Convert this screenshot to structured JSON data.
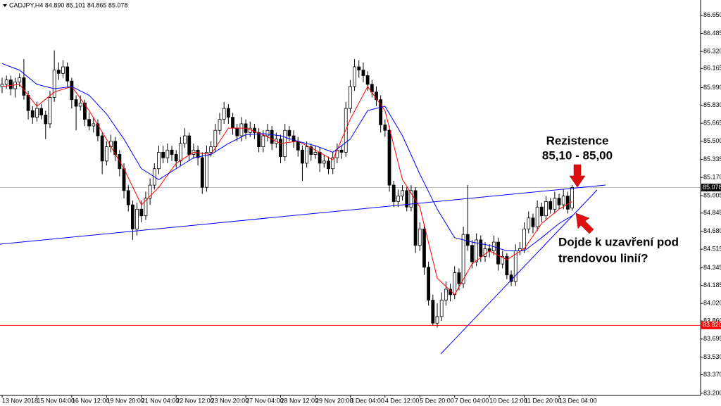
{
  "chart_data": {
    "type": "candlestick",
    "header": "CADJPY,H4  84.890 85.101 84.865 85.078",
    "ylim": [
      83.18,
      86.79
    ],
    "yticks": [
      {
        "value": 86.65,
        "label": "86.650"
      },
      {
        "value": 86.485,
        "label": "86.485"
      },
      {
        "value": 86.32,
        "label": "86.320"
      },
      {
        "value": 86.165,
        "label": "86.165"
      },
      {
        "value": 85.99,
        "label": "85.990"
      },
      {
        "value": 85.83,
        "label": "85.830"
      },
      {
        "value": 85.665,
        "label": "85.665"
      },
      {
        "value": 85.5,
        "label": "85.500"
      },
      {
        "value": 85.335,
        "label": "85.335"
      },
      {
        "value": 85.17,
        "label": "85.170"
      },
      {
        "value": 85.005,
        "label": "85.005"
      },
      {
        "value": 84.845,
        "label": "84.845"
      },
      {
        "value": 84.68,
        "label": "84.680"
      },
      {
        "value": 84.515,
        "label": "84.515"
      },
      {
        "value": 84.345,
        "label": "84.345"
      },
      {
        "value": 84.185,
        "label": "84.185"
      },
      {
        "value": 84.02,
        "label": "84.020"
      },
      {
        "value": 83.86,
        "label": "83.860"
      },
      {
        "value": 83.695,
        "label": "83.695"
      },
      {
        "value": 83.53,
        "label": "83.530"
      },
      {
        "value": 83.37,
        "label": "83.370"
      },
      {
        "value": 83.2,
        "label": "83.200"
      }
    ],
    "xticks": [
      {
        "value": 0,
        "label": "13 Nov 2018"
      },
      {
        "value": 8,
        "label": "15 Nov 04:00"
      },
      {
        "value": 16,
        "label": "16 Nov 12:00"
      },
      {
        "value": 24,
        "label": "19 Nov 20:00"
      },
      {
        "value": 32,
        "label": "21 Nov 04:00"
      },
      {
        "value": 40,
        "label": "22 Nov 12:00"
      },
      {
        "value": 48,
        "label": "23 Nov 20:00"
      },
      {
        "value": 56,
        "label": "27 Nov 04:00"
      },
      {
        "value": 64,
        "label": "28 Nov 12:00"
      },
      {
        "value": 72,
        "label": "29 Nov 20:00"
      },
      {
        "value": 80,
        "label": "3 Dec 04:00"
      },
      {
        "value": 88,
        "label": "4 Dec 12:00"
      },
      {
        "value": 96,
        "label": "5 Dec 20:00"
      },
      {
        "value": 104,
        "label": "7 Dec 04:00"
      },
      {
        "value": 112,
        "label": "10 Dec 12:00"
      },
      {
        "value": 120,
        "label": "11 Dec 20:00"
      },
      {
        "value": 128,
        "label": "13 Dec 04:00"
      }
    ],
    "ohlc": [
      [
        86.0,
        86.08,
        85.94,
        86.02
      ],
      [
        86.02,
        86.1,
        85.98,
        86.06
      ],
      [
        86.06,
        86.1,
        85.92,
        85.98
      ],
      [
        85.98,
        86.08,
        85.9,
        86.04
      ],
      [
        86.04,
        86.12,
        86.0,
        86.08
      ],
      [
        86.08,
        86.25,
        85.88,
        85.92
      ],
      [
        85.92,
        85.96,
        85.7,
        85.78
      ],
      [
        85.78,
        85.82,
        85.66,
        85.72
      ],
      [
        85.72,
        85.86,
        85.68,
        85.8
      ],
      [
        85.8,
        85.84,
        85.7,
        85.74
      ],
      [
        85.74,
        85.78,
        85.52,
        85.66
      ],
      [
        85.66,
        85.96,
        85.62,
        85.9
      ],
      [
        85.9,
        86.33,
        85.86,
        86.15
      ],
      [
        86.15,
        86.22,
        86.06,
        86.12
      ],
      [
        86.12,
        86.24,
        86.08,
        86.18
      ],
      [
        86.18,
        86.22,
        86.0,
        86.05
      ],
      [
        86.05,
        86.08,
        85.8,
        85.88
      ],
      [
        85.88,
        85.92,
        85.6,
        85.82
      ],
      [
        85.82,
        85.92,
        85.78,
        85.85
      ],
      [
        85.85,
        85.88,
        85.64,
        85.7
      ],
      [
        85.7,
        85.76,
        85.6,
        85.64
      ],
      [
        85.64,
        85.72,
        85.58,
        85.66
      ],
      [
        85.66,
        85.7,
        85.5,
        85.55
      ],
      [
        85.55,
        85.58,
        85.2,
        85.32
      ],
      [
        85.32,
        85.5,
        85.28,
        85.45
      ],
      [
        85.45,
        85.56,
        85.4,
        85.5
      ],
      [
        85.5,
        85.54,
        85.32,
        85.38
      ],
      [
        85.38,
        85.42,
        85.18,
        85.25
      ],
      [
        85.25,
        85.3,
        84.98,
        85.05
      ],
      [
        85.05,
        85.1,
        84.86,
        84.92
      ],
      [
        84.92,
        84.96,
        84.6,
        84.7
      ],
      [
        84.7,
        84.94,
        84.64,
        84.88
      ],
      [
        84.88,
        84.96,
        84.76,
        84.82
      ],
      [
        84.82,
        85.04,
        84.78,
        84.98
      ],
      [
        84.98,
        85.16,
        84.92,
        85.1
      ],
      [
        85.1,
        85.3,
        85.06,
        85.25
      ],
      [
        85.25,
        85.46,
        85.2,
        85.4
      ],
      [
        85.4,
        85.46,
        85.3,
        85.35
      ],
      [
        85.35,
        85.48,
        85.3,
        85.42
      ],
      [
        85.42,
        85.46,
        85.32,
        85.38
      ],
      [
        85.38,
        85.42,
        85.26,
        85.32
      ],
      [
        85.32,
        85.54,
        85.28,
        85.48
      ],
      [
        85.48,
        85.62,
        85.44,
        85.55
      ],
      [
        85.55,
        85.58,
        85.32,
        85.38
      ],
      [
        85.38,
        85.48,
        85.34,
        85.42
      ],
      [
        85.42,
        85.46,
        85.28,
        85.35
      ],
      [
        85.35,
        85.4,
        85.02,
        85.08
      ],
      [
        85.08,
        85.46,
        85.04,
        85.4
      ],
      [
        85.4,
        85.5,
        85.36,
        85.45
      ],
      [
        85.45,
        85.66,
        85.4,
        85.6
      ],
      [
        85.6,
        85.76,
        85.56,
        85.7
      ],
      [
        85.7,
        85.86,
        85.66,
        85.8
      ],
      [
        85.8,
        85.84,
        85.66,
        85.72
      ],
      [
        85.72,
        85.76,
        85.56,
        85.62
      ],
      [
        85.62,
        85.66,
        85.5,
        85.55
      ],
      [
        85.55,
        85.72,
        85.5,
        85.66
      ],
      [
        85.66,
        85.7,
        85.52,
        85.58
      ],
      [
        85.58,
        85.68,
        85.54,
        85.62
      ],
      [
        85.62,
        85.66,
        85.52,
        85.58
      ],
      [
        85.58,
        85.62,
        85.4,
        85.45
      ],
      [
        85.45,
        85.6,
        85.4,
        85.55
      ],
      [
        85.55,
        85.66,
        85.5,
        85.6
      ],
      [
        85.6,
        85.64,
        85.42,
        85.48
      ],
      [
        85.48,
        85.58,
        85.44,
        85.52
      ],
      [
        85.52,
        85.56,
        85.3,
        85.36
      ],
      [
        85.36,
        85.66,
        85.32,
        85.6
      ],
      [
        85.6,
        85.64,
        85.5,
        85.55
      ],
      [
        85.55,
        85.6,
        85.44,
        85.5
      ],
      [
        85.5,
        85.54,
        85.36,
        85.42
      ],
      [
        85.42,
        85.46,
        85.14,
        85.3
      ],
      [
        85.3,
        85.5,
        85.26,
        85.45
      ],
      [
        85.45,
        85.48,
        85.32,
        85.38
      ],
      [
        85.38,
        85.46,
        85.34,
        85.4
      ],
      [
        85.4,
        85.44,
        85.22,
        85.3
      ],
      [
        85.3,
        85.38,
        85.26,
        85.32
      ],
      [
        85.32,
        85.36,
        85.2,
        85.25
      ],
      [
        85.25,
        85.4,
        85.2,
        85.35
      ],
      [
        85.35,
        85.48,
        85.3,
        85.42
      ],
      [
        85.42,
        85.46,
        85.34,
        85.4
      ],
      [
        85.4,
        85.86,
        85.36,
        85.8
      ],
      [
        85.8,
        86.06,
        85.76,
        86.0
      ],
      [
        86.0,
        86.25,
        85.96,
        86.18
      ],
      [
        86.18,
        86.24,
        86.08,
        86.15
      ],
      [
        86.15,
        86.22,
        86.04,
        86.1
      ],
      [
        86.1,
        86.14,
        85.96,
        86.02
      ],
      [
        86.02,
        86.06,
        85.9,
        85.95
      ],
      [
        85.95,
        86.0,
        85.82,
        85.88
      ],
      [
        85.88,
        85.92,
        85.58,
        85.65
      ],
      [
        85.65,
        85.7,
        85.54,
        85.6
      ],
      [
        85.6,
        85.64,
        85.04,
        85.1
      ],
      [
        85.1,
        85.14,
        84.9,
        84.95
      ],
      [
        84.95,
        85.06,
        84.9,
        85.0
      ],
      [
        85.0,
        85.1,
        84.96,
        85.05
      ],
      [
        85.05,
        85.08,
        84.86,
        84.9
      ],
      [
        84.9,
        85.1,
        84.86,
        85.05
      ],
      [
        85.05,
        85.08,
        84.48,
        84.55
      ],
      [
        84.55,
        84.76,
        84.5,
        84.7
      ],
      [
        84.7,
        84.74,
        84.28,
        84.35
      ],
      [
        84.35,
        84.4,
        84.0,
        84.05
      ],
      [
        84.05,
        84.1,
        83.82,
        83.84
      ],
      [
        83.84,
        84.02,
        83.8,
        83.9
      ],
      [
        83.9,
        84.12,
        83.86,
        84.05
      ],
      [
        84.05,
        84.22,
        84.0,
        84.15
      ],
      [
        84.15,
        84.2,
        84.04,
        84.1
      ],
      [
        84.1,
        84.36,
        84.06,
        84.3
      ],
      [
        84.3,
        84.34,
        84.14,
        84.2
      ],
      [
        84.2,
        84.72,
        84.16,
        84.65
      ],
      [
        84.65,
        85.1,
        84.5,
        84.55
      ],
      [
        84.55,
        84.6,
        84.34,
        84.4
      ],
      [
        84.4,
        84.66,
        84.36,
        84.6
      ],
      [
        84.6,
        84.64,
        84.4,
        84.45
      ],
      [
        84.45,
        84.58,
        84.4,
        84.52
      ],
      [
        84.52,
        84.56,
        84.44,
        84.5
      ],
      [
        84.5,
        84.64,
        84.46,
        84.58
      ],
      [
        84.58,
        84.62,
        84.32,
        84.38
      ],
      [
        84.38,
        84.5,
        84.34,
        84.45
      ],
      [
        84.45,
        84.48,
        84.24,
        84.28
      ],
      [
        84.28,
        84.32,
        84.18,
        84.22
      ],
      [
        84.22,
        84.56,
        84.18,
        84.5
      ],
      [
        84.5,
        84.58,
        84.46,
        84.52
      ],
      [
        84.52,
        84.76,
        84.48,
        84.7
      ],
      [
        84.7,
        84.86,
        84.66,
        84.8
      ],
      [
        84.8,
        84.84,
        84.66,
        84.72
      ],
      [
        84.72,
        84.96,
        84.68,
        84.9
      ],
      [
        84.9,
        84.94,
        84.76,
        84.82
      ],
      [
        84.82,
        85.0,
        84.78,
        84.95
      ],
      [
        84.95,
        84.98,
        84.84,
        84.88
      ],
      [
        84.88,
        85.04,
        84.84,
        84.98
      ],
      [
        84.98,
        85.02,
        84.88,
        84.92
      ],
      [
        84.92,
        85.06,
        84.88,
        85.0
      ],
      [
        85.0,
        85.04,
        84.84,
        84.88
      ],
      [
        84.89,
        85.101,
        84.865,
        85.078
      ]
    ],
    "series": [
      {
        "color": "#ff0000",
        "x": [
          0,
          4,
          8,
          12,
          16,
          20,
          24,
          28,
          32,
          36,
          40,
          44,
          48,
          52,
          56,
          60,
          64,
          68,
          72,
          76,
          80,
          84,
          88,
          92,
          96,
          100,
          104,
          108,
          112,
          116,
          120,
          124,
          128,
          131
        ],
        "values": [
          86.0,
          86.02,
          85.82,
          85.95,
          86.0,
          85.78,
          85.52,
          85.25,
          84.92,
          85.08,
          85.3,
          85.4,
          85.38,
          85.62,
          85.62,
          85.56,
          85.48,
          85.5,
          85.42,
          85.33,
          85.7,
          86.0,
          85.78,
          85.15,
          84.9,
          84.25,
          84.1,
          84.38,
          84.5,
          84.42,
          84.52,
          84.75,
          84.88,
          84.95
        ]
      },
      {
        "color": "#0000ff",
        "x": [
          0,
          4,
          8,
          12,
          16,
          20,
          24,
          28,
          32,
          36,
          40,
          44,
          48,
          52,
          56,
          60,
          64,
          68,
          72,
          76,
          80,
          84,
          88,
          92,
          96,
          100,
          104,
          108,
          112,
          116,
          120,
          124,
          128,
          131
        ],
        "values": [
          86.21,
          86.15,
          86.02,
          85.98,
          86.0,
          85.92,
          85.75,
          85.52,
          85.25,
          85.15,
          85.25,
          85.35,
          85.38,
          85.48,
          85.56,
          85.57,
          85.55,
          85.5,
          85.46,
          85.4,
          85.52,
          85.78,
          85.82,
          85.55,
          85.2,
          84.88,
          84.62,
          84.58,
          84.55,
          84.5,
          84.5,
          84.62,
          84.75,
          84.82
        ]
      }
    ],
    "price_line": {
      "value": 85.078,
      "label": "85.078",
      "color": "#c0c0c0"
    },
    "level_line": {
      "value": 83.82,
      "label": "83.820",
      "color": "#ff0000"
    },
    "annotations": {
      "resistance_title": "Rezistence",
      "resistance_range": "85,10 - 85,00",
      "question_line1": "Dojde k uzavření pod",
      "question_line2": "trendovou linií?"
    }
  }
}
